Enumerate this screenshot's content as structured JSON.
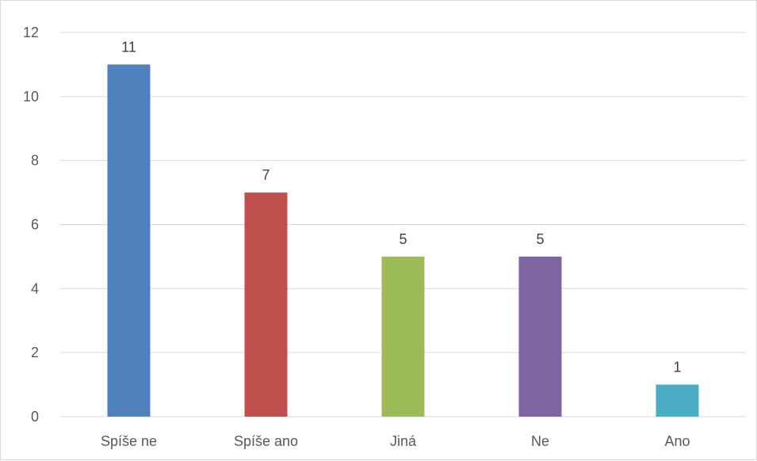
{
  "chart_data": {
    "type": "bar",
    "categories": [
      "Spíše ne",
      "Spíše ano",
      "Jiná",
      "Ne",
      "Ano"
    ],
    "values": [
      11,
      7,
      5,
      5,
      1
    ],
    "colors": [
      "#4F81BD",
      "#C0504D",
      "#9BBB59",
      "#8064A2",
      "#4BACC6"
    ],
    "ylim": [
      0,
      12
    ],
    "yticks": [
      0,
      2,
      4,
      6,
      8,
      10,
      12
    ],
    "grid": true,
    "data_labels": true,
    "title": "",
    "xlabel": "",
    "ylabel": ""
  }
}
